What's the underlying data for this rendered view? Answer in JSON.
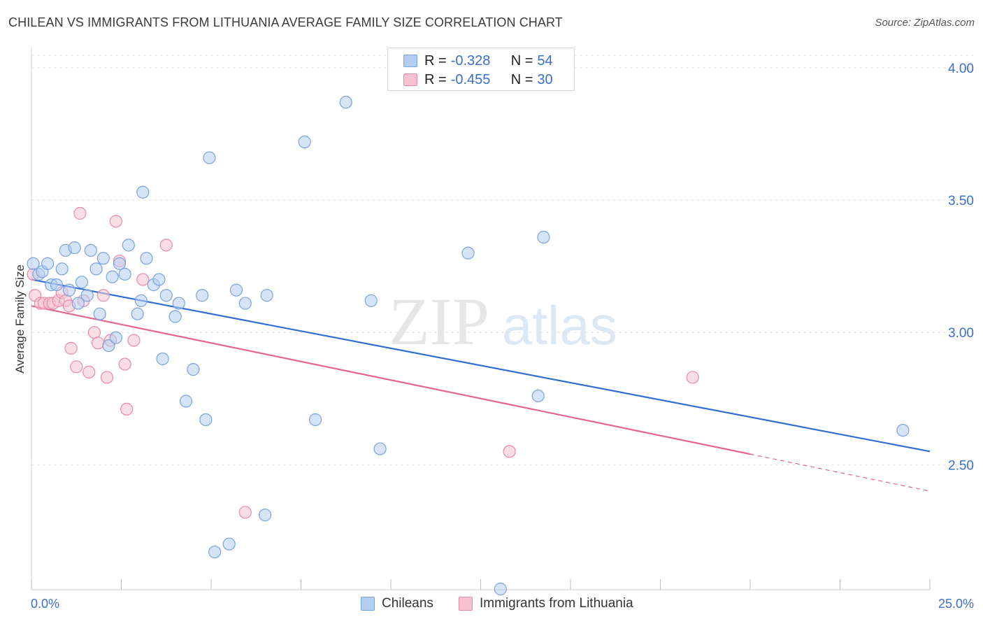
{
  "title": "CHILEAN VS IMMIGRANTS FROM LITHUANIA AVERAGE FAMILY SIZE CORRELATION CHART",
  "source": "Source: ZipAtlas.com",
  "watermark": {
    "zip": "ZIP",
    "atlas": "atlas"
  },
  "colors": {
    "blue_fill": "#b3cdf0",
    "blue_stroke": "#7aa3dc",
    "blue_line": "#2f6fd1",
    "pink_fill": "#f6c2d2",
    "pink_stroke": "#e88aa8",
    "pink_line": "#e4668f",
    "accent_text": "#3b6fc9",
    "grid": "#e3e3e3"
  },
  "legend": {
    "rows": [
      {
        "r_label": "R =",
        "r_value": "-0.328",
        "n_label": "N =",
        "n_value": "54"
      },
      {
        "r_label": "R =",
        "r_value": "-0.455",
        "n_label": "N =",
        "n_value": "30"
      }
    ]
  },
  "bottom_legend": {
    "items": [
      {
        "label": "Chileans"
      },
      {
        "label": "Immigrants from Lithuania"
      }
    ]
  },
  "chart_data": {
    "type": "scatter",
    "title": "CHILEAN VS IMMIGRANTS FROM LITHUANIA AVERAGE FAMILY SIZE CORRELATION CHART",
    "xlabel": "",
    "ylabel": "Average Family Size",
    "xlim": [
      0,
      25
    ],
    "ylim": [
      2.03,
      4.05
    ],
    "x_tick_labels": [
      "0.0%",
      "25.0%"
    ],
    "y_ticks": [
      2.5,
      3.0,
      3.5,
      4.0
    ],
    "y_tick_labels": [
      "2.50",
      "3.00",
      "3.50",
      "4.00"
    ],
    "grid": "horizontal-dashed",
    "legend_position": "top-center",
    "series": [
      {
        "name": "Chileans",
        "color": "blue",
        "points": [
          [
            0.05,
            3.26
          ],
          [
            0.2,
            3.22
          ],
          [
            0.3,
            3.23
          ],
          [
            0.45,
            3.26
          ],
          [
            0.55,
            3.18
          ],
          [
            0.7,
            3.18
          ],
          [
            0.85,
            3.24
          ],
          [
            0.95,
            3.31
          ],
          [
            1.05,
            3.16
          ],
          [
            1.2,
            3.32
          ],
          [
            1.3,
            3.11
          ],
          [
            1.4,
            3.19
          ],
          [
            1.55,
            3.14
          ],
          [
            1.65,
            3.31
          ],
          [
            1.8,
            3.24
          ],
          [
            1.9,
            3.07
          ],
          [
            2.0,
            3.28
          ],
          [
            2.15,
            2.95
          ],
          [
            2.25,
            3.21
          ],
          [
            2.35,
            2.98
          ],
          [
            2.45,
            3.26
          ],
          [
            2.6,
            3.22
          ],
          [
            2.7,
            3.33
          ],
          [
            2.95,
            3.07
          ],
          [
            3.05,
            3.12
          ],
          [
            3.1,
            3.53
          ],
          [
            3.2,
            3.28
          ],
          [
            3.4,
            3.18
          ],
          [
            3.55,
            3.2
          ],
          [
            3.65,
            2.9
          ],
          [
            3.75,
            3.14
          ],
          [
            4.0,
            3.06
          ],
          [
            4.1,
            3.11
          ],
          [
            4.3,
            2.74
          ],
          [
            4.5,
            2.86
          ],
          [
            4.75,
            3.14
          ],
          [
            4.85,
            2.67
          ],
          [
            4.95,
            3.66
          ],
          [
            5.1,
            2.17
          ],
          [
            5.5,
            2.2
          ],
          [
            5.7,
            3.16
          ],
          [
            5.95,
            3.11
          ],
          [
            6.5,
            2.31
          ],
          [
            6.55,
            3.14
          ],
          [
            7.6,
            3.72
          ],
          [
            7.9,
            2.67
          ],
          [
            8.75,
            3.87
          ],
          [
            9.45,
            3.12
          ],
          [
            9.7,
            2.56
          ],
          [
            12.15,
            3.3
          ],
          [
            13.05,
            2.03
          ],
          [
            14.1,
            2.76
          ],
          [
            14.25,
            3.36
          ],
          [
            24.25,
            2.63
          ]
        ],
        "trendline": {
          "x": [
            0,
            25
          ],
          "y": [
            3.2,
            2.55
          ]
        }
      },
      {
        "name": "Immigrants from Lithuania",
        "color": "pink",
        "points": [
          [
            0.1,
            3.14
          ],
          [
            0.25,
            3.11
          ],
          [
            0.35,
            3.11
          ],
          [
            0.5,
            3.11
          ],
          [
            0.6,
            3.11
          ],
          [
            0.75,
            3.12
          ],
          [
            0.85,
            3.15
          ],
          [
            0.95,
            3.12
          ],
          [
            1.05,
            3.1
          ],
          [
            1.1,
            2.94
          ],
          [
            1.25,
            2.87
          ],
          [
            1.35,
            3.45
          ],
          [
            1.45,
            3.12
          ],
          [
            1.6,
            2.85
          ],
          [
            1.75,
            3.0
          ],
          [
            1.85,
            2.96
          ],
          [
            2.0,
            3.14
          ],
          [
            2.1,
            2.83
          ],
          [
            2.2,
            2.97
          ],
          [
            2.35,
            3.42
          ],
          [
            2.45,
            3.27
          ],
          [
            2.6,
            2.88
          ],
          [
            2.65,
            2.71
          ],
          [
            2.85,
            2.97
          ],
          [
            3.1,
            3.2
          ],
          [
            3.75,
            3.33
          ],
          [
            5.95,
            2.32
          ],
          [
            13.3,
            2.55
          ],
          [
            18.4,
            2.83
          ],
          [
            0.05,
            3.22
          ]
        ],
        "trendline": {
          "x": [
            0,
            20.0
          ],
          "y": [
            3.1,
            2.54
          ]
        },
        "trendline_dashed_extension": {
          "x": [
            20.0,
            25
          ],
          "y": [
            2.54,
            2.4
          ]
        }
      }
    ]
  }
}
